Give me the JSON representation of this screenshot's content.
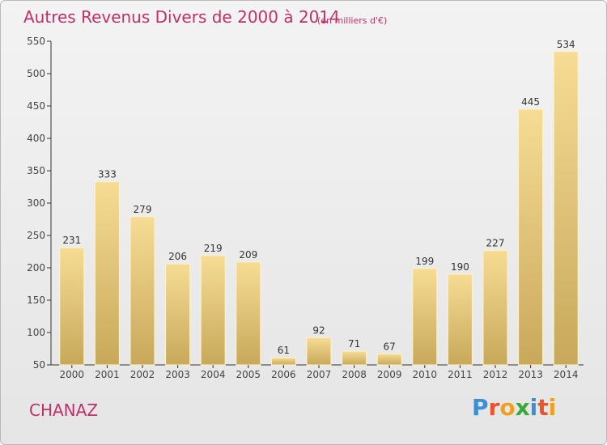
{
  "title": "Autres Revenus Divers de 2000 à 2014",
  "subtitle": "(en milliers d'€)",
  "place": "CHANAZ",
  "logo": {
    "letters": [
      "P",
      "r",
      "o",
      "x",
      "i",
      "t",
      "i"
    ],
    "colors": [
      "#3a8fd8",
      "#e8552d",
      "#f0a020",
      "#3aa83a",
      "#3a8fd8",
      "#e8552d",
      "#f0a020"
    ]
  },
  "colors": {
    "bar_top": "#f6dc94",
    "bar_bottom": "#c8a95b",
    "title": "#c0306a"
  },
  "chart_data": {
    "type": "bar",
    "title": "Autres Revenus Divers de 2000 à 2014",
    "subtitle": "(en milliers d'€)",
    "categories": [
      "2000",
      "2001",
      "2002",
      "2003",
      "2004",
      "2005",
      "2006",
      "2007",
      "2008",
      "2009",
      "2010",
      "2011",
      "2012",
      "2013",
      "2014"
    ],
    "values": [
      231,
      333,
      279,
      206,
      219,
      209,
      61,
      92,
      71,
      67,
      199,
      190,
      227,
      445,
      534
    ],
    "ylim": [
      50,
      550
    ],
    "yticks": [
      50,
      100,
      150,
      200,
      250,
      300,
      350,
      400,
      450,
      500,
      550
    ],
    "grid": false,
    "legend": "none"
  }
}
